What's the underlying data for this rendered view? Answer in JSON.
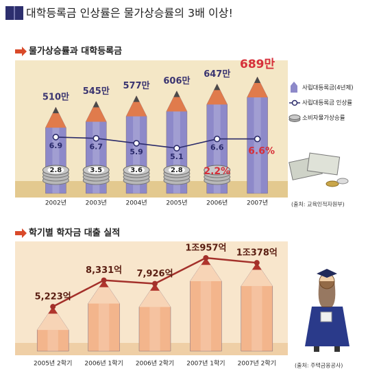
{
  "title": "대학등록금 인상률은 물가상승률의 3배 이상!",
  "chart_data": [
    {
      "type": "bar",
      "title": "물가상승률과 대학등록금",
      "categories": [
        "2002년",
        "2003년",
        "2004년",
        "2005년",
        "2006년",
        "2007년"
      ],
      "series": [
        {
          "name": "사립대등록금(4년제)",
          "type": "bar",
          "color": "#8d89c9",
          "values": [
            510,
            545,
            577,
            606,
            647,
            689
          ],
          "value_labels": [
            "510만",
            "545만",
            "577만",
            "606만",
            "647만",
            "689만"
          ]
        },
        {
          "name": "사립대등록금 인상률",
          "type": "line",
          "color": "#2a2a6a",
          "values": [
            6.9,
            6.7,
            5.9,
            5.1,
            6.6,
            6.6
          ],
          "value_labels": [
            "6.9",
            "6.7",
            "5.9",
            "5.1",
            "6.6",
            "6.6%"
          ]
        },
        {
          "name": "소비자물가상승률",
          "type": "coin",
          "color": "#c9c9c9",
          "values": [
            2.8,
            3.5,
            3.6,
            2.8,
            2.2,
            null
          ],
          "value_labels": [
            "2.8",
            "3.5",
            "3.6",
            "2.8",
            "2.2%",
            null
          ]
        }
      ],
      "highlight_color": "#d6303a",
      "legend": "right",
      "source": "(출처: 교육인적자원부)"
    },
    {
      "type": "bar",
      "title": "학기별 학자금 대출 실적",
      "categories": [
        "2005년 2학기",
        "2006년 1학기",
        "2006년 2학기",
        "2007년 1학기",
        "2007년 2학기"
      ],
      "series": [
        {
          "type": "bar",
          "color": "#f3b58c",
          "line_color": "#a3302a",
          "values": [
            5223,
            8331,
            7926,
            10957,
            10378
          ],
          "value_labels": [
            "5,223억",
            "8,331억",
            "7,926억",
            "1조957억",
            "1조378억"
          ]
        }
      ],
      "source": "(출처: 주택금융공사)"
    }
  ]
}
